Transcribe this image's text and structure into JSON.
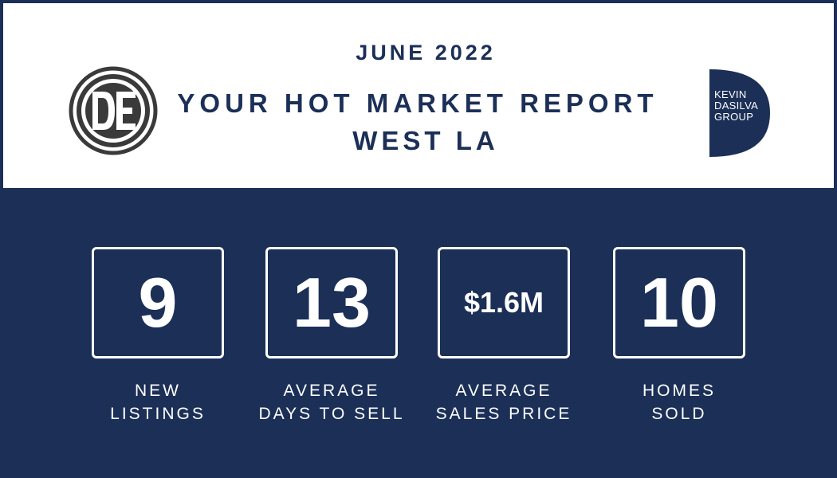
{
  "header": {
    "month": "JUNE 2022",
    "title": "YOUR HOT MARKET REPORT",
    "subtitle": "WEST LA"
  },
  "logos": {
    "left": {
      "monogram": "DE",
      "icon": "de-monogram-logo"
    },
    "right": {
      "lines": [
        "KEVIN",
        "DASILVA",
        "GROUP"
      ],
      "icon": "kevin-dasilva-group-logo"
    }
  },
  "colors": {
    "navy": "#1b2f57",
    "white": "#ffffff"
  },
  "stats": [
    {
      "value": "9",
      "label_lines": [
        "NEW",
        "LISTINGS"
      ]
    },
    {
      "value": "13",
      "label_lines": [
        "AVERAGE",
        "DAYS TO SELL"
      ]
    },
    {
      "value": "$1.6M",
      "label_lines": [
        "AVERAGE",
        "SALES PRICE"
      ]
    },
    {
      "value": "10",
      "label_lines": [
        "HOMES",
        "SOLD"
      ]
    }
  ]
}
